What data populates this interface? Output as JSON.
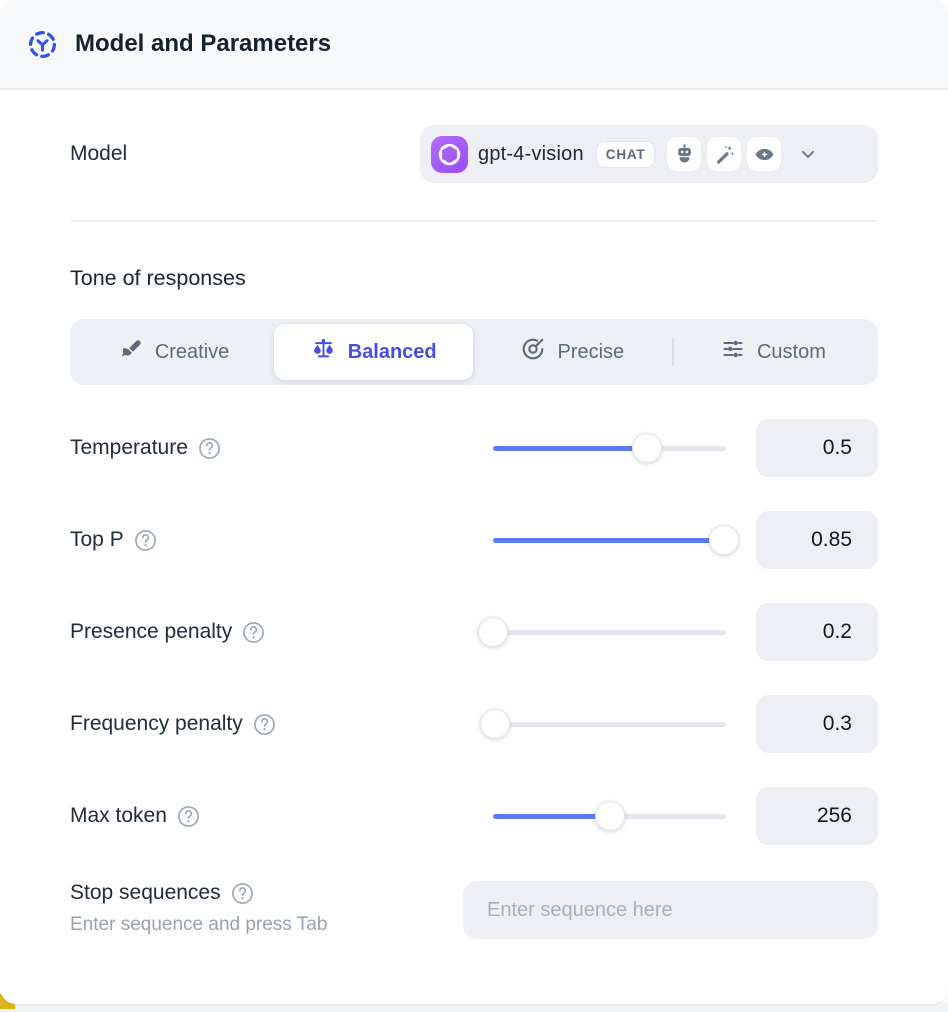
{
  "header": {
    "title": "Model and Parameters"
  },
  "model_row": {
    "label": "Model",
    "selected_model": "gpt-4-vision",
    "badge": "CHAT",
    "capability_icons": [
      "robot-icon",
      "magic-wand-icon",
      "vision-eye-icon"
    ]
  },
  "tone": {
    "heading": "Tone of responses",
    "options": [
      {
        "label": "Creative",
        "icon": "brush-icon",
        "selected": false
      },
      {
        "label": "Balanced",
        "icon": "balance-scale-icon",
        "selected": true
      },
      {
        "label": "Precise",
        "icon": "target-icon",
        "selected": false
      },
      {
        "label": "Custom",
        "icon": "sliders-icon",
        "selected": false
      }
    ]
  },
  "parameters": [
    {
      "label": "Temperature",
      "value": "0.5",
      "slider_percent": 66
    },
    {
      "label": "Top P",
      "value": "0.85",
      "slider_percent": 99
    },
    {
      "label": "Presence penalty",
      "value": "0.2",
      "slider_percent": 0
    },
    {
      "label": "Frequency penalty",
      "value": "0.3",
      "slider_percent": 1
    },
    {
      "label": "Max token",
      "value": "256",
      "slider_percent": 50
    }
  ],
  "stop_sequences": {
    "label": "Stop sequences",
    "hint": "Enter sequence and press Tab",
    "placeholder": "Enter sequence here"
  },
  "colors": {
    "accent_blue": "#5b7bf7",
    "selected_indigo": "#474de2",
    "avatar_purple": "#9a4cf6",
    "header_bg": "#f8f9fb",
    "field_bg": "#edeff4",
    "text_dark": "#1b2535",
    "text_gray": "#5d6a7d",
    "corner_yellow": "#d8b61a"
  }
}
